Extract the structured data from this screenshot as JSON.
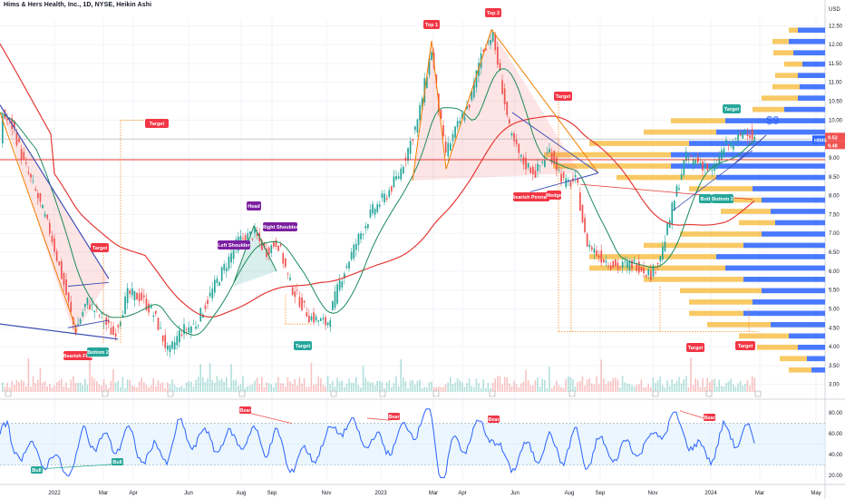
{
  "header": {
    "title": "Hims & Hers Health, Inc., 1D, NYSE, Heikin Ashi"
  },
  "price_axis": {
    "currency": "USD",
    "ticks": [
      "12.50",
      "12.00",
      "11.50",
      "11.00",
      "10.50",
      "10.00",
      "9.50",
      "9.00",
      "8.50",
      "8.00",
      "7.50",
      "7.00",
      "6.50",
      "6.00",
      "5.50",
      "5.00",
      "4.50",
      "4.00",
      "3.50",
      "3.00"
    ],
    "last_price": "9.52",
    "symbol_tag": "HIMS",
    "tag_value": "9.48"
  },
  "rsi_axis": {
    "ticks": [
      "80.00",
      "60.00",
      "40.00",
      "20.00"
    ]
  },
  "time_axis": {
    "labels": [
      "2022",
      "Mar",
      "Apr",
      "Jun",
      "Aug",
      "Sep",
      "Nov",
      "2023",
      "Mar",
      "Apr",
      "Jun",
      "Aug",
      "Sep",
      "Nov",
      "2024",
      "Mar",
      "May"
    ]
  },
  "annotations": {
    "top1": "Top 1",
    "top2": "Top 2",
    "head": "Head",
    "left_shoulder": "Left Shoulder",
    "right_shoulder": "Right Shoulder",
    "bearish_flag": "Bearish Flag",
    "bottom2_left": "Bottom 2",
    "bearish_pennant": "Bearish Pennant",
    "wedge": "Wedge",
    "bottom2_right": "Bottom 2",
    "bott": "Bott",
    "target_1": "Target",
    "target_2": "Target",
    "target_3": "Target",
    "target_4": "Target",
    "target_5": "Target",
    "target_6": "Target",
    "target_7": "Target",
    "bear_1": "Bear",
    "bear_2": "Bear",
    "bear_3": "Bear",
    "bear_4": "Bear",
    "bull_1": "Bull",
    "bull_2": "Bull",
    "dollar_target": "$9"
  },
  "colors": {
    "bull": "#26a69a",
    "bear": "#ef5350",
    "rsi_line": "#2962ff",
    "ma_long": "#e53935",
    "ma_short": "#1b8a5a",
    "vp_up": "#2962ff",
    "vp_down": "#f7b731",
    "label_red": "#f23645",
    "label_purple": "#7b1fa2",
    "label_teal": "#26a69a"
  },
  "chart_data": {
    "type": "candlestick",
    "ylim": [
      2.8,
      12.7
    ],
    "rsi_ylim": [
      15,
      88
    ],
    "overlays": [
      "moving average (long)",
      "moving average (short)",
      "volume profile",
      "RSI"
    ]
  }
}
